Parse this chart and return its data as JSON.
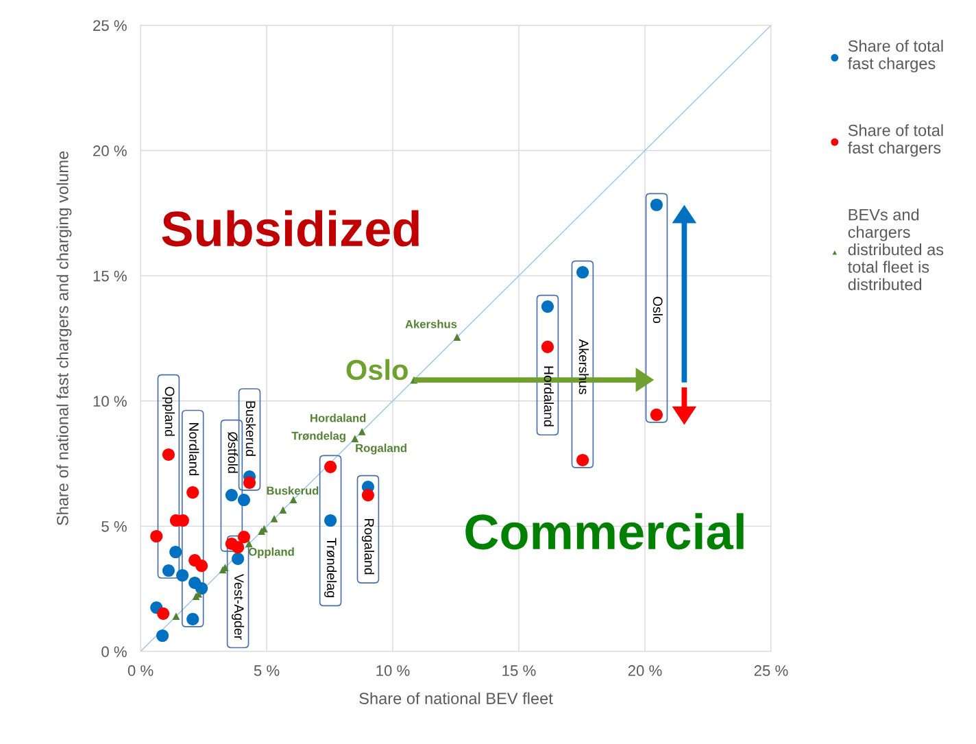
{
  "chart_data": {
    "type": "scatter",
    "xlabel": "Share of national BEV fleet",
    "ylabel": "Share of national fast chargers and charging volume",
    "xlim": [
      0,
      25
    ],
    "ylim": [
      0,
      25
    ],
    "xticks": [
      {
        "value": 0,
        "label": "0 %"
      },
      {
        "value": 5,
        "label": "5 %"
      },
      {
        "value": 10,
        "label": "10 %"
      },
      {
        "value": 15,
        "label": "15 %"
      },
      {
        "value": 20,
        "label": "20 %"
      },
      {
        "value": 25,
        "label": "25 %"
      }
    ],
    "yticks": [
      {
        "value": 0,
        "label": "0 %"
      },
      {
        "value": 5,
        "label": "5 %"
      },
      {
        "value": 10,
        "label": "10 %"
      },
      {
        "value": 15,
        "label": "15 %"
      },
      {
        "value": 20,
        "label": "20 %"
      },
      {
        "value": 25,
        "label": "25 %"
      }
    ],
    "grid": true,
    "legend": "right",
    "series": [
      {
        "name": "Share of total fast charges",
        "marker": "circle",
        "color": "#0070c0",
        "x": [
          0.63,
          0.87,
          1.11,
          1.39,
          1.66,
          2.07,
          2.15,
          2.42,
          3.61,
          4.1,
          3.86,
          4.32,
          7.53,
          9.02,
          16.14,
          17.53,
          20.46
        ],
        "values": [
          1.75,
          0.63,
          3.23,
          3.97,
          3.04,
          1.29,
          2.74,
          2.52,
          6.24,
          6.05,
          3.7,
          6.98,
          5.23,
          6.57,
          13.77,
          15.14,
          17.83
        ]
      },
      {
        "name": "Share of total fast chargers",
        "marker": "circle",
        "color": "#ff0000",
        "x": [
          0.63,
          0.9,
          1.11,
          1.41,
          1.68,
          2.07,
          2.15,
          2.42,
          3.61,
          3.86,
          4.1,
          4.32,
          7.53,
          9.02,
          16.14,
          17.53,
          20.46
        ],
        "values": [
          4.6,
          1.51,
          7.86,
          5.23,
          5.23,
          6.35,
          3.64,
          3.42,
          4.3,
          4.16,
          4.57,
          6.74,
          7.37,
          6.24,
          12.16,
          7.64,
          9.45
        ]
      },
      {
        "name": "BEVs and chargers distributed as total fleet is distributed",
        "marker": "triangle",
        "color": "#548235",
        "x": [
          1.41,
          2.2,
          2.3,
          3.26,
          3.35,
          4.3,
          4.8,
          4.9,
          5.3,
          5.65,
          6.06,
          8.5,
          8.78,
          10.84,
          12.55
        ],
        "values": [
          1.41,
          2.2,
          2.3,
          3.26,
          3.35,
          4.3,
          4.8,
          4.9,
          5.3,
          5.65,
          6.06,
          8.5,
          8.78,
          10.84,
          12.55
        ]
      },
      {
        "type": "line",
        "marker": "none",
        "color": "#9dc3e6",
        "x": [
          0,
          25
        ],
        "values": [
          0,
          25
        ]
      }
    ],
    "annotations": [
      {
        "text": "Oppland",
        "x": 1.11,
        "y": 7.86
      },
      {
        "text": "Nordland",
        "x": 2.07,
        "y": 6.35
      },
      {
        "text": "Østfold",
        "x": 3.61,
        "y": 6.24
      },
      {
        "text": "Buskerud",
        "x": 4.32,
        "y": 6.98
      },
      {
        "text": "Vest-Agder",
        "x": 3.86,
        "y": 3.7
      },
      {
        "text": "Trøndelag",
        "x": 7.53,
        "y": 5.23
      },
      {
        "text": "Rogaland",
        "x": 9.02,
        "y": 6.24
      },
      {
        "text": "Hordaland",
        "x": 16.14,
        "y": 12.16
      },
      "Akershus",
      "Oslo",
      {
        "text": "Akershus",
        "x": 12.55,
        "y": 12.55
      },
      {
        "text": "Oslo",
        "x": 10.84,
        "y": 10.84
      },
      {
        "text": "Hordaland",
        "x": 8.78,
        "y": 8.78
      },
      {
        "text": "Trøndelag",
        "x": 8.5,
        "y": 8.5
      },
      {
        "text": "Rogaland",
        "x": 8.5,
        "y": 8.5
      },
      {
        "text": "Buskerud",
        "x": 6.06,
        "y": 6.06
      },
      {
        "text": "Oppland",
        "x": 4.3,
        "y": 4.3
      },
      "Subsidized",
      "Commercial"
    ]
  }
}
